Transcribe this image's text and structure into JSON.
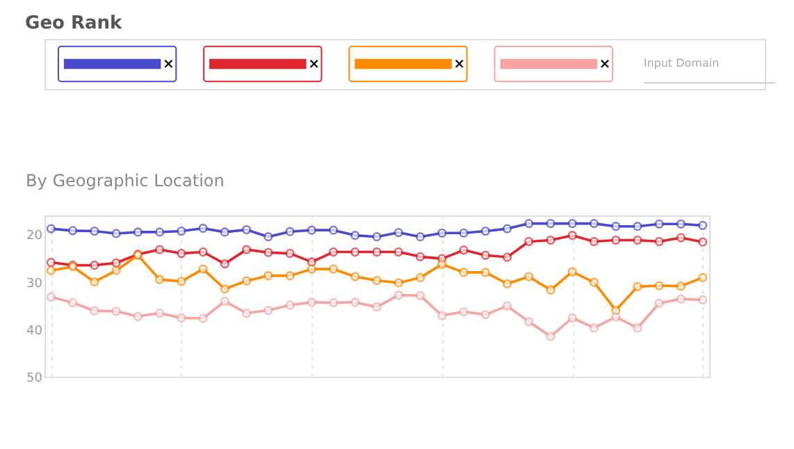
{
  "chart_data": {
    "type": "line",
    "title": "Geo Rank",
    "subtitle": "By Geographic Location",
    "annotations": [
      "×",
      "×",
      "×",
      "×",
      "Input Domain"
    ],
    "categories": [
      null,
      null,
      null,
      null,
      null,
      null,
      null,
      null,
      null,
      null,
      null,
      null,
      null,
      null,
      null,
      null,
      null,
      null,
      null,
      null,
      null,
      null,
      null,
      null,
      null,
      null,
      null,
      null,
      null,
      null,
      null
    ],
    "series": [
      {
        "color": "#4a4ad0",
        "values": [
          18.8,
          19.2,
          19.3,
          19.8,
          19.5,
          19.5,
          19.3,
          18.7,
          19.5,
          19.0,
          20.5,
          19.4,
          19.1,
          19.1,
          20.2,
          20.5,
          19.6,
          20.5,
          19.7,
          19.7,
          19.3,
          18.8,
          17.7,
          17.7,
          17.7,
          17.7,
          18.3,
          18.3,
          17.8,
          17.8,
          18.1
        ]
      },
      {
        "color": "#e0262c",
        "values": [
          25.9,
          26.5,
          26.5,
          26.0,
          24.2,
          23.2,
          24.0,
          23.7,
          26.2,
          23.2,
          23.8,
          24.0,
          25.8,
          23.7,
          23.7,
          23.7,
          23.7,
          24.7,
          25.1,
          23.3,
          24.4,
          24.8,
          21.5,
          21.2,
          20.2,
          21.5,
          21.2,
          21.2,
          21.5,
          20.7,
          21.6
        ]
      },
      {
        "color": "#ff8a00",
        "values": [
          27.6,
          26.8,
          30.0,
          27.6,
          24.4,
          29.5,
          29.9,
          27.3,
          31.5,
          29.8,
          28.7,
          28.7,
          27.3,
          27.3,
          28.9,
          29.7,
          30.2,
          29.1,
          26.3,
          28.0,
          28.0,
          30.4,
          28.9,
          31.7,
          27.9,
          30.1,
          36.0,
          31.0,
          30.8,
          30.9,
          29.1
        ]
      },
      {
        "color": "#f7a3a3",
        "values": [
          33.2,
          34.4,
          36.1,
          36.2,
          37.3,
          36.6,
          37.6,
          37.7,
          34.1,
          36.6,
          36.0,
          34.9,
          34.3,
          34.4,
          34.3,
          35.3,
          32.8,
          32.9,
          37.1,
          36.3,
          36.9,
          35.1,
          38.4,
          41.5,
          37.6,
          39.7,
          37.4,
          39.7,
          34.5,
          33.6,
          33.8
        ]
      }
    ],
    "ylim": [
      50,
      16
    ],
    "yticks": [
      20,
      30,
      40,
      50
    ],
    "grid": "x",
    "tick_labels": "y",
    "marker": "circle",
    "line_style": "solid"
  }
}
